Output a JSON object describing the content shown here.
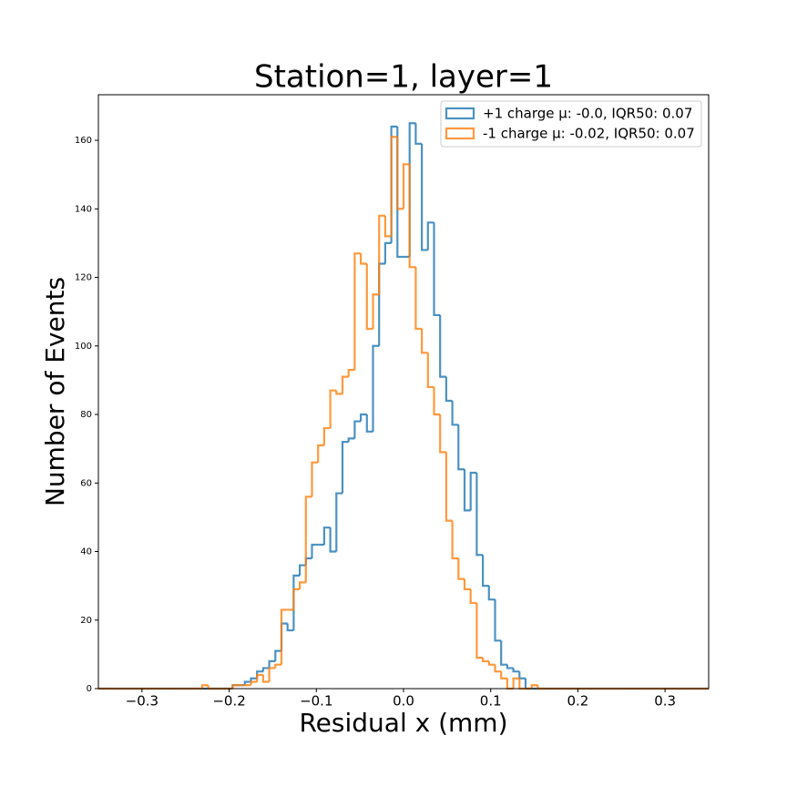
{
  "chart_data": {
    "type": "histogram",
    "title": "Station=1, layer=1",
    "x_label": "Residual x (mm)",
    "y_label": "Number of Events",
    "bins": [
      -0.35,
      -0.343,
      -0.336,
      -0.329,
      -0.322,
      -0.315,
      -0.308,
      -0.301,
      -0.294,
      -0.287,
      -0.28,
      -0.273,
      -0.266,
      -0.259,
      -0.252,
      -0.245,
      -0.238,
      -0.231,
      -0.224,
      -0.217,
      -0.21,
      -0.203,
      -0.196,
      -0.189,
      -0.182,
      -0.175,
      -0.168,
      -0.161,
      -0.154,
      -0.147,
      -0.14,
      -0.133,
      -0.126,
      -0.119,
      -0.112,
      -0.105,
      -0.098,
      -0.091,
      -0.084,
      -0.077,
      -0.07,
      -0.063,
      -0.056,
      -0.049,
      -0.042,
      -0.035,
      -0.028,
      -0.021,
      -0.014,
      -0.007,
      0,
      0.007,
      0.014,
      0.021,
      0.028,
      0.035,
      0.042,
      0.049,
      0.056,
      0.063,
      0.07,
      0.077,
      0.084,
      0.091,
      0.098,
      0.105,
      0.112,
      0.119,
      0.126,
      0.133,
      0.14,
      0.147,
      0.154,
      0.161,
      0.168,
      0.175,
      0.182,
      0.189,
      0.196,
      0.203,
      0.21,
      0.217,
      0.224,
      0.231,
      0.238,
      0.245,
      0.252,
      0.259,
      0.266,
      0.273,
      0.28,
      0.287,
      0.294,
      0.301,
      0.308,
      0.315,
      0.322,
      0.329,
      0.336,
      0.343,
      0.35
    ],
    "series": [
      {
        "name": "+1 charge μ: -0.0, IQR50: 0.07",
        "color": "#1f77b4",
        "values": [
          0,
          0,
          0,
          0,
          0,
          0,
          0,
          0,
          0,
          0,
          0,
          0,
          0,
          0,
          0,
          0,
          0,
          0,
          0,
          0,
          0,
          0,
          1,
          1,
          2,
          3,
          5,
          6,
          8,
          11,
          19,
          17,
          33,
          36,
          38,
          42,
          42,
          47,
          40,
          57,
          72,
          73,
          78,
          80,
          75,
          100,
          124,
          130,
          164,
          126,
          126,
          165,
          159,
          128,
          136,
          109,
          91,
          84,
          77,
          64,
          52,
          63,
          39,
          30,
          26,
          14,
          7,
          6,
          5,
          3,
          0,
          0,
          0,
          0,
          0,
          0,
          0,
          0,
          0,
          0,
          0,
          0,
          0,
          0,
          0,
          0,
          0,
          0,
          0,
          0,
          0,
          0,
          0,
          0,
          0,
          0,
          0,
          0,
          0,
          0
        ]
      },
      {
        "name": "-1 charge μ: -0.02, IQR50: 0.07",
        "color": "#ff7f0e",
        "values": [
          0,
          0,
          0,
          0,
          0,
          0,
          0,
          0,
          0,
          0,
          0,
          0,
          0,
          0,
          0,
          0,
          0,
          1,
          0,
          0,
          0,
          0,
          1,
          1,
          1,
          2,
          4,
          2,
          6,
          7,
          23,
          23,
          29,
          31,
          56,
          66,
          71,
          76,
          87,
          86,
          91,
          93,
          127,
          124,
          105,
          115,
          138,
          132,
          161,
          140,
          153,
          123,
          105,
          98,
          88,
          80,
          69,
          49,
          38,
          32,
          29,
          25,
          9,
          8,
          7,
          5,
          3,
          0,
          3,
          0,
          0,
          1,
          0,
          0,
          0,
          0,
          0,
          0,
          0,
          0,
          0,
          0,
          0,
          0,
          0,
          0,
          0,
          0,
          0,
          0,
          0,
          0,
          0,
          0,
          0,
          0,
          0,
          0,
          0,
          0
        ]
      }
    ],
    "xlim": [
      -0.35,
      0.35
    ],
    "xticks": [
      {
        "value": -0.3,
        "label": "−0.3"
      },
      {
        "value": -0.2,
        "label": "−0.2"
      },
      {
        "value": -0.1,
        "label": "−0.1"
      },
      {
        "value": 0,
        "label": "0.0"
      },
      0.1,
      0.2,
      0.3
    ],
    "ylim": [
      0,
      173.3
    ],
    "yticks": [
      0,
      20,
      40,
      60,
      80,
      100,
      120,
      140,
      160
    ],
    "legend": "upper right"
  }
}
